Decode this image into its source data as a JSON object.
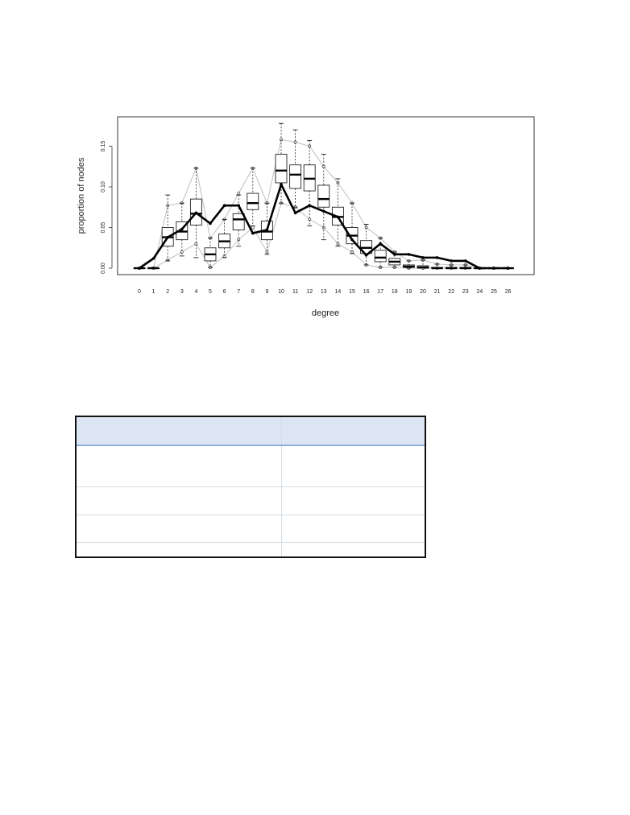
{
  "chart_data": {
    "type": "boxplot",
    "xlabel": "degree",
    "ylabel": "proportion of nodes",
    "categories": [
      "0",
      "1",
      "2",
      "3",
      "4",
      "5",
      "6",
      "7",
      "8",
      "9",
      "10",
      "11",
      "12",
      "13",
      "14",
      "15",
      "16",
      "17",
      "18",
      "19",
      "20",
      "21",
      "22",
      "23",
      "24",
      "25",
      "26"
    ],
    "ylim": [
      0,
      0.18
    ],
    "yticks": [
      "0.00",
      "0.05",
      "0.10",
      "0.15"
    ],
    "grid": false,
    "boxes": [
      {
        "x": "0",
        "min": 0,
        "q1": 0,
        "median": 0,
        "q3": 0,
        "max": 0
      },
      {
        "x": "1",
        "min": 0,
        "q1": 0,
        "median": 0,
        "q3": 0,
        "max": 0.001
      },
      {
        "x": "2",
        "min": 0.009,
        "q1": 0.027,
        "median": 0.038,
        "q3": 0.05,
        "max": 0.09
      },
      {
        "x": "3",
        "min": 0.015,
        "q1": 0.035,
        "median": 0.045,
        "q3": 0.057,
        "max": 0.08
      },
      {
        "x": "4",
        "min": 0.013,
        "q1": 0.053,
        "median": 0.067,
        "q3": 0.085,
        "max": 0.123
      },
      {
        "x": "5",
        "min": 0.001,
        "q1": 0.009,
        "median": 0.017,
        "q3": 0.025,
        "max": 0.037
      },
      {
        "x": "6",
        "min": 0.013,
        "q1": 0.025,
        "median": 0.033,
        "q3": 0.042,
        "max": 0.06
      },
      {
        "x": "7",
        "min": 0.027,
        "q1": 0.047,
        "median": 0.06,
        "q3": 0.067,
        "max": 0.09
      },
      {
        "x": "8",
        "min": 0.052,
        "q1": 0.072,
        "median": 0.08,
        "q3": 0.092,
        "max": 0.123
      },
      {
        "x": "9",
        "min": 0.017,
        "q1": 0.035,
        "median": 0.045,
        "q3": 0.058,
        "max": 0.08
      },
      {
        "x": "10",
        "min": 0.08,
        "q1": 0.105,
        "median": 0.12,
        "q3": 0.14,
        "max": 0.178
      },
      {
        "x": "11",
        "min": 0.075,
        "q1": 0.098,
        "median": 0.115,
        "q3": 0.127,
        "max": 0.17
      },
      {
        "x": "12",
        "min": 0.052,
        "q1": 0.095,
        "median": 0.11,
        "q3": 0.127,
        "max": 0.157
      },
      {
        "x": "13",
        "min": 0.035,
        "q1": 0.075,
        "median": 0.085,
        "q3": 0.102,
        "max": 0.14
      },
      {
        "x": "14",
        "min": 0.027,
        "q1": 0.053,
        "median": 0.063,
        "q3": 0.075,
        "max": 0.11
      },
      {
        "x": "15",
        "min": 0.018,
        "q1": 0.03,
        "median": 0.04,
        "q3": 0.05,
        "max": 0.08
      },
      {
        "x": "16",
        "min": 0.004,
        "q1": 0.018,
        "median": 0.025,
        "q3": 0.034,
        "max": 0.054
      },
      {
        "x": "17",
        "min": 0.001,
        "q1": 0.008,
        "median": 0.013,
        "q3": 0.022,
        "max": 0.037
      },
      {
        "x": "18",
        "min": 0.001,
        "q1": 0.004,
        "median": 0.008,
        "q3": 0.012,
        "max": 0.02
      },
      {
        "x": "19",
        "min": 0,
        "q1": 0.001,
        "median": 0.002,
        "q3": 0.004,
        "max": 0.009
      },
      {
        "x": "20",
        "min": 0,
        "q1": 0,
        "median": 0.001,
        "q3": 0.003,
        "max": 0.01
      },
      {
        "x": "21",
        "min": 0,
        "q1": 0,
        "median": 0,
        "q3": 0.001,
        "max": 0.005
      },
      {
        "x": "22",
        "min": 0,
        "q1": 0,
        "median": 0,
        "q3": 0.001,
        "max": 0.004
      },
      {
        "x": "23",
        "min": 0,
        "q1": 0,
        "median": 0,
        "q3": 0.001,
        "max": 0.004
      },
      {
        "x": "24",
        "min": 0,
        "q1": 0,
        "median": 0,
        "q3": 0,
        "max": 0
      },
      {
        "x": "25",
        "min": 0,
        "q1": 0,
        "median": 0,
        "q3": 0,
        "max": 0
      },
      {
        "x": "26",
        "min": 0,
        "q1": 0,
        "median": 0,
        "q3": 0,
        "max": 0
      }
    ],
    "series": [
      {
        "values": [
          0,
          0.012,
          0.038,
          0.048,
          0.068,
          0.055,
          0.077,
          0.077,
          0.043,
          0.047,
          0.103,
          0.068,
          0.077,
          0.07,
          0.063,
          0.035,
          0.016,
          0.03,
          0.017,
          0.017,
          0.013,
          0.013,
          0.009,
          0.009,
          0,
          0,
          0
        ]
      }
    ],
    "bands": [
      {
        "values": [
          0,
          0,
          0.077,
          0.08,
          0.123,
          0.037,
          0.06,
          0.092,
          0.123,
          0.08,
          0.158,
          0.155,
          0.15,
          0.125,
          0.105,
          0.08,
          0.05,
          0.037,
          0.02,
          0.009,
          0.01,
          0.005,
          0.004,
          0.004,
          0,
          0,
          0
        ]
      },
      {
        "values": [
          0,
          0,
          0.01,
          0.02,
          0.03,
          0.001,
          0.015,
          0.035,
          0.05,
          0.02,
          0.08,
          0.075,
          0.06,
          0.05,
          0.03,
          0.02,
          0.004,
          0.001,
          0.001,
          0,
          0,
          0,
          0,
          0,
          0,
          0,
          0
        ]
      }
    ]
  },
  "table": {
    "header": [
      "",
      ""
    ],
    "rows": [
      [
        "",
        ""
      ],
      [
        "",
        ""
      ],
      [
        "",
        ""
      ],
      [
        "",
        ""
      ]
    ]
  }
}
